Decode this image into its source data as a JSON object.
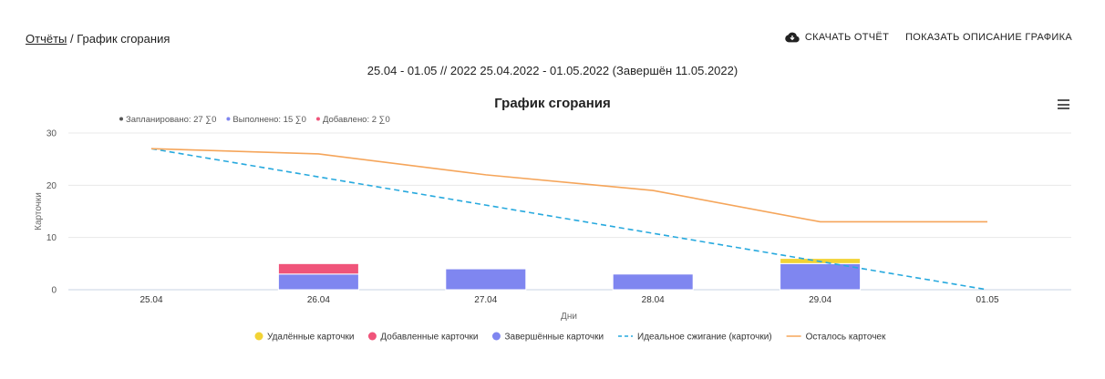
{
  "breadcrumb": {
    "link": "Отчёты",
    "separator": " / ",
    "current": "График сгорания"
  },
  "actions": {
    "download": "СКАЧАТЬ ОТЧЁТ",
    "show_description": "ПОКАЗАТЬ ОПИСАНИЕ ГРАФИКА"
  },
  "sprint_title": "25.04 - 01.05 // 2022 25.04.2022 - 01.05.2022 (Завершён 11.05.2022)",
  "icons": {
    "download": "cloud-download-icon",
    "menu": "hamburger-menu-icon"
  },
  "chart_data": {
    "type": "bar",
    "title": "График сгорания",
    "subtitle": [
      {
        "text": "Запланировано: 27 ∑0",
        "color": "#555555"
      },
      {
        "text": "Выполнено: 15 ∑0",
        "color": "#7f86f0"
      },
      {
        "text": "Добавлено: 2 ∑0",
        "color": "#f0547a"
      }
    ],
    "xlabel": "Дни",
    "ylabel": "Карточки",
    "ylim": [
      0,
      30
    ],
    "yticks": [
      "0",
      "10",
      "20",
      "30"
    ],
    "categories": [
      "25.04",
      "26.04",
      "27.04",
      "28.04",
      "29.04",
      "01.05"
    ],
    "grid": true,
    "legend_position": "bottom",
    "series": [
      {
        "name": "Завершённые карточки",
        "kind": "bar",
        "color": "#7f86f0",
        "values": [
          0,
          3,
          4,
          3,
          5,
          0
        ]
      },
      {
        "name": "Добавленные карточки",
        "kind": "bar",
        "color": "#f0547a",
        "values": [
          0,
          2,
          0,
          0,
          0,
          0
        ]
      },
      {
        "name": "Удалённые карточки",
        "kind": "bar",
        "color": "#f2d335",
        "values": [
          0,
          0,
          0,
          0,
          1,
          0
        ]
      },
      {
        "name": "Идеальное сжигание (карточки)",
        "kind": "dashed-line",
        "color": "#27a9de",
        "values": [
          27,
          21.6,
          16.2,
          10.8,
          5.4,
          0
        ]
      },
      {
        "name": "Осталось карточек",
        "kind": "line",
        "color": "#f5a55a",
        "values": [
          27,
          26,
          22,
          19,
          13,
          13
        ]
      }
    ],
    "legend_order": [
      "Удалённые карточки",
      "Добавленные карточки",
      "Завершённые карточки",
      "Идеальное сжигание (карточки)",
      "Осталось карточек"
    ]
  }
}
